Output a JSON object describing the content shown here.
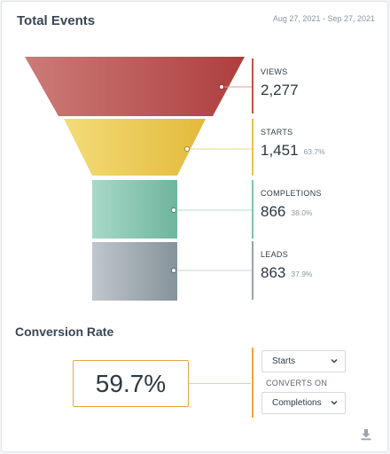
{
  "header": {
    "title": "Total Events",
    "date_range": "Aug 27, 2021 - Sep 27, 2021"
  },
  "funnel": {
    "stages": [
      {
        "label": "VIEWS",
        "value": "2,277",
        "percent": "",
        "color": "#c0504f"
      },
      {
        "label": "STARTS",
        "value": "1,451",
        "percent": "63.7%",
        "color": "#e8c34a"
      },
      {
        "label": "COMPLETIONS",
        "value": "866",
        "percent": "38.0%",
        "color": "#7fc3ad"
      },
      {
        "label": "LEADS",
        "value": "863",
        "percent": "37.9%",
        "color": "#97a4aa"
      }
    ]
  },
  "conversion": {
    "title": "Conversion Rate",
    "rate": "59.7%",
    "from_select": "Starts",
    "converts_on_label": "CONVERTS ON",
    "to_select": "Completions"
  },
  "icons": {
    "download": "download-icon",
    "chevron": "chevron-down-icon"
  }
}
